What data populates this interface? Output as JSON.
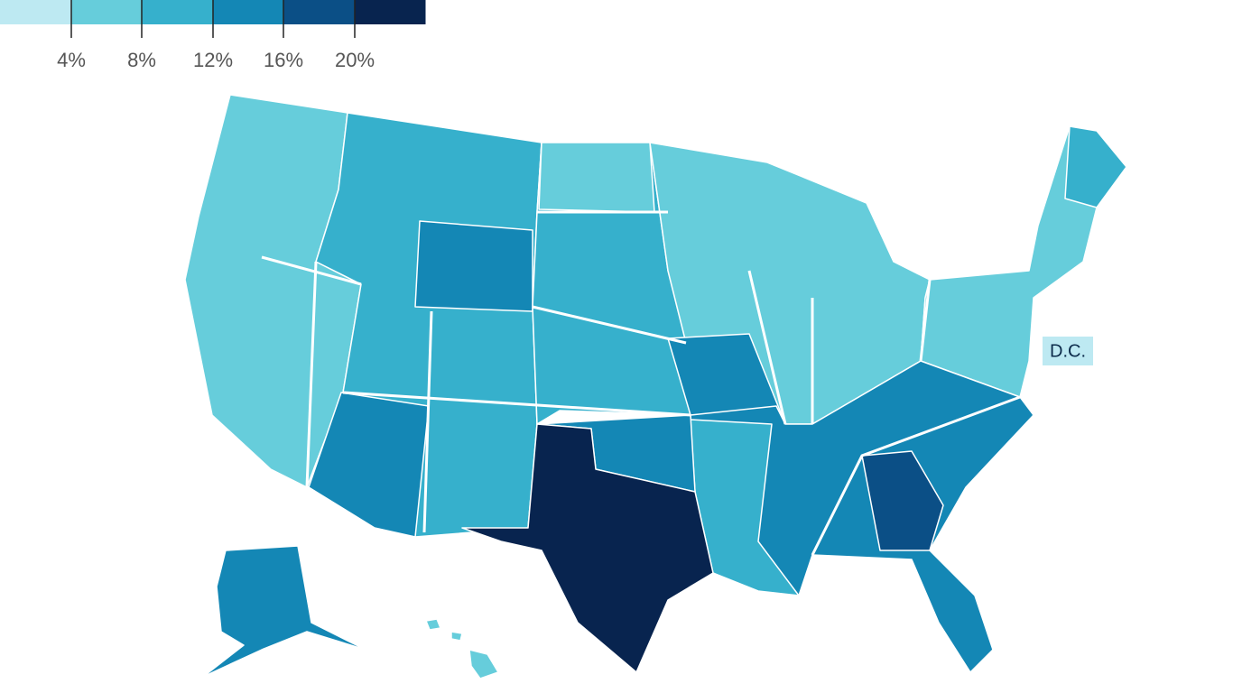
{
  "legend": {
    "colors": [
      "#bde9f2",
      "#66cddb",
      "#36b0cc",
      "#1487b5",
      "#0b4f86",
      "#08244f"
    ],
    "ticks": [
      {
        "value": 4,
        "label": "4%"
      },
      {
        "value": 8,
        "label": "8%"
      },
      {
        "value": 12,
        "label": "12%"
      },
      {
        "value": 16,
        "label": "16%"
      },
      {
        "value": 20,
        "label": "20%"
      }
    ]
  },
  "annotations": {
    "dc": "D.C."
  }
}
